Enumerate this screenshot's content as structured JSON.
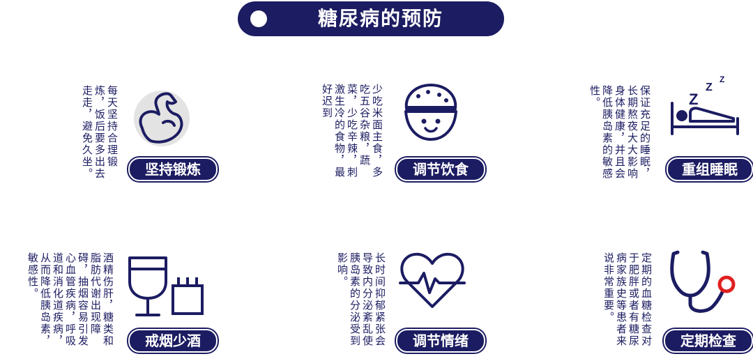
{
  "title": "糖尿病的预防",
  "colors": {
    "navy": "#1c1c62",
    "red": "#e02020",
    "gray": "#e3e3e3"
  },
  "cards": [
    {
      "label": "坚持锻炼",
      "icon": "flexed-arm-icon",
      "text": "每天坚持合理锻炼，饭后要多出去走走，避免久坐。"
    },
    {
      "label": "调节饮食",
      "icon": "rice-bowl-face-icon",
      "text": "少吃米面主食，多吃五谷杂粮，蔬菜，少吃辛辣，刺激生冷的食物，最好迟到"
    },
    {
      "label": "重组睡眠",
      "icon": "sleeping-bed-icon",
      "text": "保证充足的睡眠，长期熬夜大大影响身体健康，并且会降低胰岛素的敏感性。"
    },
    {
      "label": "戒烟少酒",
      "icon": "wine-cigarette-icon",
      "text": "酒精伤肝，糖类和脂肪代谢出现障碍，抽烟容易引发心血管疾病，呼吸道和消化道疾病，从而降低胰岛素，敏感性。"
    },
    {
      "label": "调节情绪",
      "icon": "heartbeat-icon",
      "text": "长时间抑郁紧张会导致内分泌紊乱使胰岛素的分泌受到影响。"
    },
    {
      "label": "定期检查",
      "icon": "stethoscope-icon",
      "text": "定期的血糖检查对于肥胖或者有糖尿病家族史等患者来说非常重要。"
    }
  ]
}
